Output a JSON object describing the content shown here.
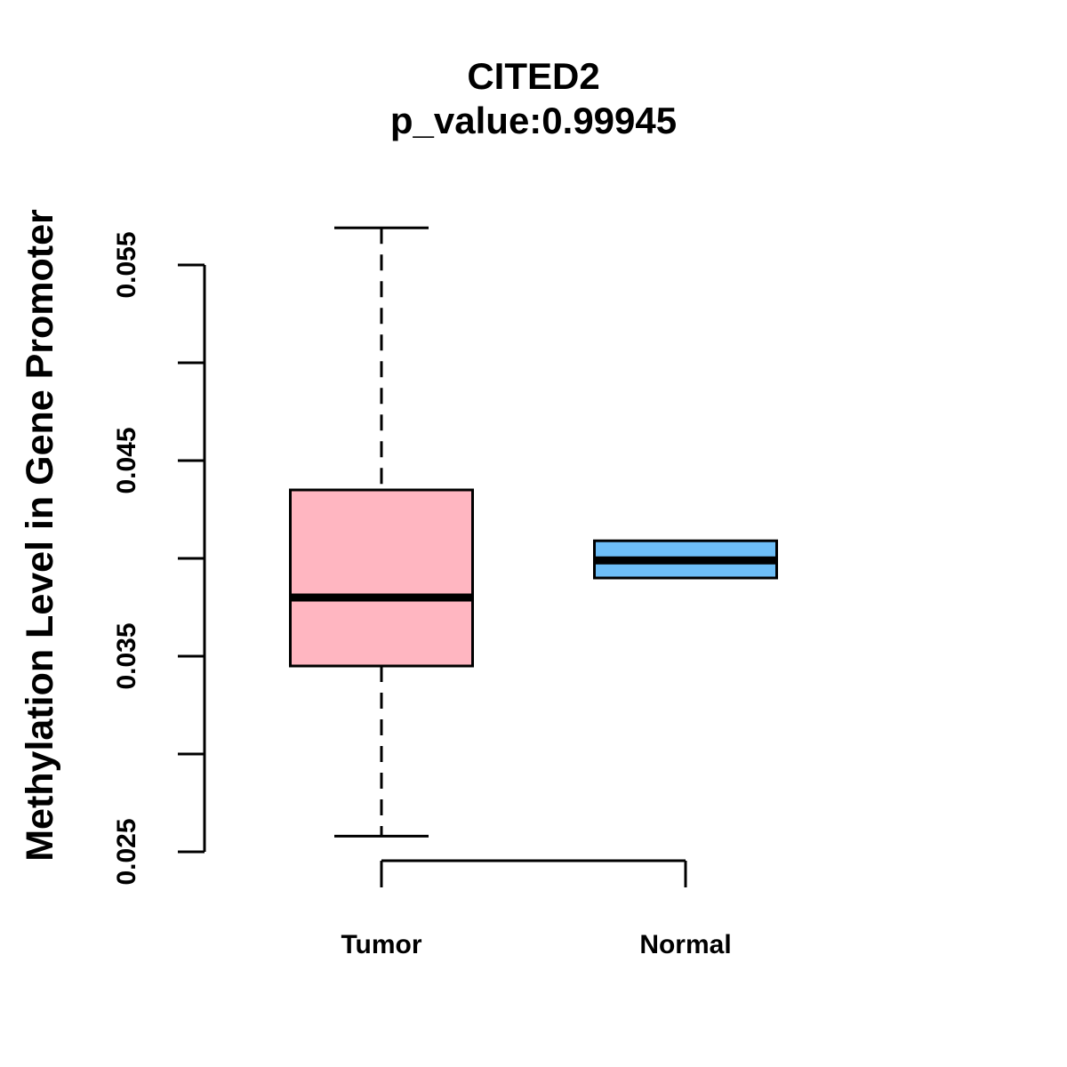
{
  "chart_data": {
    "type": "boxplot",
    "title": "CITED2",
    "subtitle": "p_value:0.99945",
    "ylabel": "Methylation Level in Gene Promoter",
    "xlabel": "",
    "categories": [
      "Tumor",
      "Normal"
    ],
    "ylim": [
      0.025,
      0.055
    ],
    "ytick_step": 0.005,
    "yticks_all": [
      0.025,
      0.03,
      0.035,
      0.04,
      0.045,
      0.05,
      0.055
    ],
    "yticks_labeled": [
      {
        "value": 0.025,
        "label": "0.025"
      },
      {
        "value": 0.035,
        "label": "0.035"
      },
      {
        "value": 0.045,
        "label": "0.045"
      },
      {
        "value": 0.055,
        "label": "0.055"
      }
    ],
    "grid": false,
    "legend": "none",
    "colors": {
      "box_border": "#000000",
      "axis": "#000000",
      "text": "#000000"
    },
    "series": [
      {
        "name": "Tumor",
        "fill_color": "#FFB6C1",
        "whisker_low": 0.0258,
        "q1": 0.0345,
        "median": 0.038,
        "q3": 0.0435,
        "whisker_high": 0.0569,
        "whisker_line_style": "dashed",
        "outliers": []
      },
      {
        "name": "Normal",
        "fill_color": "#6EBEF7",
        "whisker_low": 0.039,
        "q1": 0.039,
        "median": 0.0399,
        "q3": 0.0409,
        "whisker_high": 0.0409,
        "whisker_line_style": "none",
        "outliers": []
      }
    ]
  }
}
